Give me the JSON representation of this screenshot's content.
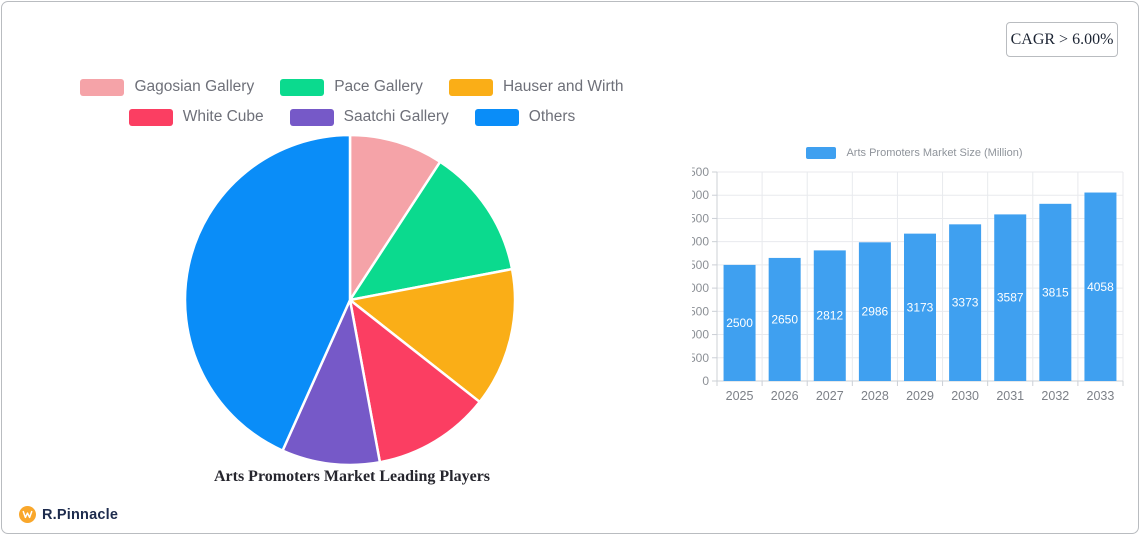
{
  "card": {
    "cagr_label": "CAGR > 6.00%"
  },
  "brand": {
    "name": "R.Pinnacle"
  },
  "chart_data": [
    {
      "type": "pie",
      "title": "Arts Promoters Market Leading Players",
      "labels": [
        "Gagosian Gallery",
        "Pace Gallery",
        "Hauser and Wirth",
        "White Cube",
        "Saatchi Gallery",
        "Others"
      ],
      "values": [
        9.2,
        12.8,
        13.6,
        11.5,
        9.6,
        43.3
      ],
      "values_note": "estimated share percent, no numeric labels shown on pie",
      "colors": [
        "#F5A3A8",
        "#0BDA8E",
        "#FAAE17",
        "#FB3E62",
        "#7659C8",
        "#0A8DF8"
      ],
      "legend_rows": [
        [
          "Gagosian Gallery",
          "Pace Gallery",
          "Hauser and Wirth"
        ],
        [
          "White Cube",
          "Saatchi Gallery",
          "Others"
        ]
      ],
      "start_angle_deg": 0,
      "direction": "clockwise",
      "slice_border_color": "#ffffff"
    },
    {
      "type": "bar",
      "legend": "Arts Promoters Market Size (Million)",
      "categories": [
        "2025",
        "2026",
        "2027",
        "2028",
        "2029",
        "2030",
        "2031",
        "2032",
        "2033"
      ],
      "values": [
        2500,
        2650,
        2812,
        2986,
        3173,
        3373,
        3587,
        3815,
        4058
      ],
      "ylim": [
        0,
        4500
      ],
      "ytick_step": 500,
      "bar_color": "#3FA0F0",
      "value_label_color": "#ffffff",
      "grid": true,
      "legend_position": "top"
    }
  ]
}
